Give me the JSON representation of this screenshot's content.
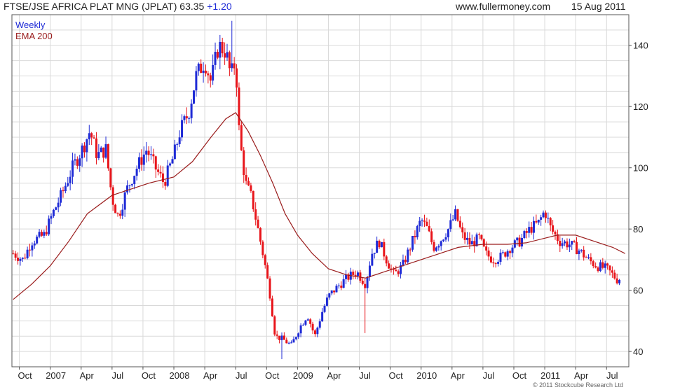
{
  "header": {
    "title": "FTSE/JSE AFRICA PLAT MNG (JPLAT)",
    "last": "63.35",
    "change": "+1.20",
    "site": "www.fullermoney.com",
    "date": "15 Aug 2011"
  },
  "footer": {
    "copyright": "© 2011 Stockcube Research Ltd"
  },
  "colors": {
    "up": "#1f2bd6",
    "down": "#e8141a",
    "ema": "#9a1c1c",
    "grid": "#d9d9d9",
    "frame": "#555555"
  },
  "chart_data": {
    "type": "candlestick",
    "legend": [
      {
        "label": "Weekly",
        "color": "#1f2bd6"
      },
      {
        "label": "EMA 200",
        "color": "#9a1c1c"
      }
    ],
    "legend_placement": "top-left",
    "grid": true,
    "y_axis_side": "right",
    "ylim": [
      35,
      150
    ],
    "yticks": [
      40,
      60,
      80,
      100,
      120,
      140
    ],
    "xlim": [
      2006.69,
      2011.68
    ],
    "xticks": [
      {
        "label": "Oct",
        "t": 2006.75
      },
      {
        "label": "2007",
        "t": 2007.0
      },
      {
        "label": "Apr",
        "t": 2007.25
      },
      {
        "label": "Jul",
        "t": 2007.5
      },
      {
        "label": "Oct",
        "t": 2007.75
      },
      {
        "label": "2008",
        "t": 2008.0
      },
      {
        "label": "Apr",
        "t": 2008.25
      },
      {
        "label": "Jul",
        "t": 2008.5
      },
      {
        "label": "Oct",
        "t": 2008.75
      },
      {
        "label": "2009",
        "t": 2009.0
      },
      {
        "label": "Apr",
        "t": 2009.25
      },
      {
        "label": "Jul",
        "t": 2009.5
      },
      {
        "label": "Oct",
        "t": 2009.75
      },
      {
        "label": "2010",
        "t": 2010.0
      },
      {
        "label": "Apr",
        "t": 2010.25
      },
      {
        "label": "Jul",
        "t": 2010.5
      },
      {
        "label": "Oct",
        "t": 2010.75
      },
      {
        "label": "2011",
        "t": 2011.0
      },
      {
        "label": "Apr",
        "t": 2011.25
      },
      {
        "label": "Jul",
        "t": 2011.5
      }
    ],
    "close_path": [
      [
        2006.7,
        72
      ],
      [
        2006.78,
        70
      ],
      [
        2006.85,
        76
      ],
      [
        2006.95,
        78
      ],
      [
        2007.02,
        85
      ],
      [
        2007.1,
        92
      ],
      [
        2007.18,
        100
      ],
      [
        2007.27,
        107
      ],
      [
        2007.32,
        112
      ],
      [
        2007.38,
        104
      ],
      [
        2007.45,
        106
      ],
      [
        2007.5,
        90
      ],
      [
        2007.55,
        84
      ],
      [
        2007.62,
        93
      ],
      [
        2007.7,
        100
      ],
      [
        2007.78,
        106
      ],
      [
        2007.85,
        100
      ],
      [
        2007.92,
        95
      ],
      [
        2008.0,
        104
      ],
      [
        2008.05,
        112
      ],
      [
        2008.12,
        118
      ],
      [
        2008.18,
        130
      ],
      [
        2008.25,
        135
      ],
      [
        2008.3,
        128
      ],
      [
        2008.36,
        140
      ],
      [
        2008.42,
        138
      ],
      [
        2008.46,
        130
      ],
      [
        2008.5,
        135
      ],
      [
        2008.53,
        110
      ],
      [
        2008.58,
        95
      ],
      [
        2008.63,
        90
      ],
      [
        2008.68,
        80
      ],
      [
        2008.73,
        70
      ],
      [
        2008.78,
        58
      ],
      [
        2008.82,
        45
      ],
      [
        2008.88,
        44
      ],
      [
        2008.95,
        42
      ],
      [
        2009.02,
        48
      ],
      [
        2009.08,
        52
      ],
      [
        2009.14,
        45
      ],
      [
        2009.2,
        53
      ],
      [
        2009.25,
        58
      ],
      [
        2009.32,
        61
      ],
      [
        2009.4,
        64
      ],
      [
        2009.48,
        66
      ],
      [
        2009.55,
        62
      ],
      [
        2009.6,
        72
      ],
      [
        2009.66,
        76
      ],
      [
        2009.72,
        70
      ],
      [
        2009.78,
        65
      ],
      [
        2009.85,
        68
      ],
      [
        2009.92,
        75
      ],
      [
        2010.0,
        83
      ],
      [
        2010.05,
        80
      ],
      [
        2010.1,
        74
      ],
      [
        2010.15,
        76
      ],
      [
        2010.22,
        80
      ],
      [
        2010.28,
        85
      ],
      [
        2010.33,
        78
      ],
      [
        2010.4,
        75
      ],
      [
        2010.47,
        77
      ],
      [
        2010.52,
        72
      ],
      [
        2010.58,
        70
      ],
      [
        2010.65,
        71
      ],
      [
        2010.72,
        74
      ],
      [
        2010.8,
        76
      ],
      [
        2010.88,
        80
      ],
      [
        2010.95,
        82
      ],
      [
        2011.0,
        86
      ],
      [
        2011.05,
        80
      ],
      [
        2011.12,
        76
      ],
      [
        2011.2,
        75
      ],
      [
        2011.28,
        73
      ],
      [
        2011.35,
        70
      ],
      [
        2011.42,
        68
      ],
      [
        2011.5,
        67
      ],
      [
        2011.55,
        65
      ],
      [
        2011.62,
        62
      ]
    ],
    "ema200": [
      [
        2006.7,
        57
      ],
      [
        2006.85,
        62
      ],
      [
        2007.0,
        68
      ],
      [
        2007.15,
        76
      ],
      [
        2007.3,
        85
      ],
      [
        2007.5,
        91
      ],
      [
        2007.65,
        93
      ],
      [
        2007.8,
        95
      ],
      [
        2008.0,
        97
      ],
      [
        2008.15,
        102
      ],
      [
        2008.3,
        110
      ],
      [
        2008.42,
        116
      ],
      [
        2008.5,
        118
      ],
      [
        2008.6,
        112
      ],
      [
        2008.7,
        104
      ],
      [
        2008.8,
        95
      ],
      [
        2008.9,
        85
      ],
      [
        2009.0,
        78
      ],
      [
        2009.12,
        72
      ],
      [
        2009.25,
        67
      ],
      [
        2009.4,
        65
      ],
      [
        2009.55,
        64
      ],
      [
        2009.7,
        66
      ],
      [
        2009.85,
        68
      ],
      [
        2010.0,
        70
      ],
      [
        2010.15,
        72
      ],
      [
        2010.3,
        74
      ],
      [
        2010.5,
        75
      ],
      [
        2010.7,
        75
      ],
      [
        2010.85,
        75.5
      ],
      [
        2011.0,
        77
      ],
      [
        2011.1,
        78
      ],
      [
        2011.25,
        78
      ],
      [
        2011.4,
        76
      ],
      [
        2011.55,
        74
      ],
      [
        2011.65,
        72
      ]
    ],
    "last_close": 63.35,
    "notable_lows": [
      [
        2008.88,
        37.5
      ],
      [
        2009.55,
        46
      ]
    ],
    "notable_highs": [
      [
        2008.47,
        148
      ]
    ]
  }
}
